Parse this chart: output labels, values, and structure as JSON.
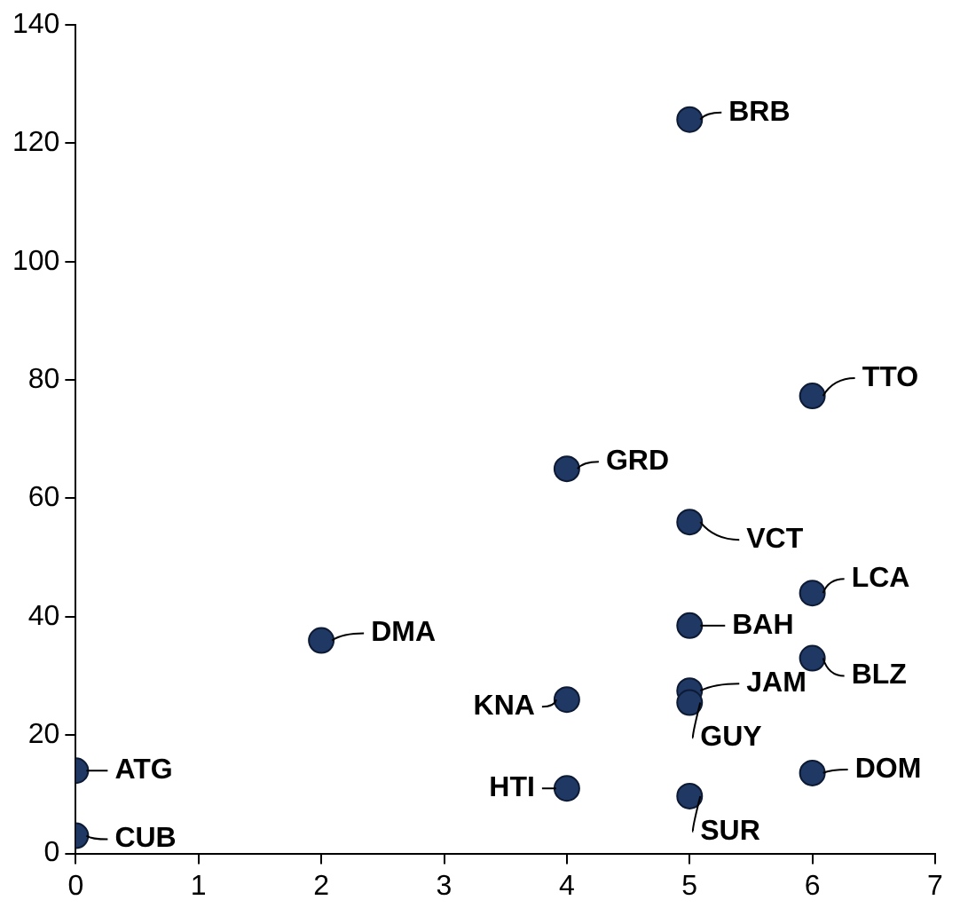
{
  "chart_data": {
    "type": "scatter",
    "marker": "circle",
    "grid": false,
    "legend": false,
    "xlim": [
      0,
      7
    ],
    "xticks": [
      0,
      1,
      2,
      3,
      4,
      5,
      6,
      7
    ],
    "ylim": [
      0,
      140
    ],
    "yticks": [
      0,
      20,
      40,
      60,
      80,
      100,
      120,
      140
    ],
    "series": [
      {
        "color": "#1f3864",
        "x": [
          0,
          0,
          2,
          4,
          4,
          4,
          5,
          5,
          5,
          5,
          5,
          5,
          6,
          6,
          6,
          6
        ],
        "values": [
          14,
          3,
          36,
          26,
          11,
          65,
          124,
          56,
          38.5,
          27.5,
          25.5,
          9.7,
          77.3,
          44,
          33,
          13.6
        ]
      }
    ],
    "annotations": [
      {
        "text": "ATG",
        "x": 0,
        "y": 14
      },
      {
        "text": "CUB",
        "x": 0,
        "y": 3
      },
      {
        "text": "DMA",
        "x": 2,
        "y": 36
      },
      {
        "text": "KNA",
        "x": 4,
        "y": 26
      },
      {
        "text": "HTI",
        "x": 4,
        "y": 11
      },
      {
        "text": "GRD",
        "x": 4,
        "y": 65
      },
      {
        "text": "BRB",
        "x": 5,
        "y": 124
      },
      {
        "text": "VCT",
        "x": 5,
        "y": 56
      },
      {
        "text": "BAH",
        "x": 5,
        "y": 38.5
      },
      {
        "text": "JAM",
        "x": 5,
        "y": 27.5
      },
      {
        "text": "GUY",
        "x": 5,
        "y": 25.5
      },
      {
        "text": "SUR",
        "x": 5,
        "y": 9.7
      },
      {
        "text": "TTO",
        "x": 6,
        "y": 77.3
      },
      {
        "text": "LCA",
        "x": 6,
        "y": 44
      },
      {
        "text": "BLZ",
        "x": 6,
        "y": 33
      },
      {
        "text": "DOM",
        "x": 6,
        "y": 13.6
      }
    ]
  }
}
